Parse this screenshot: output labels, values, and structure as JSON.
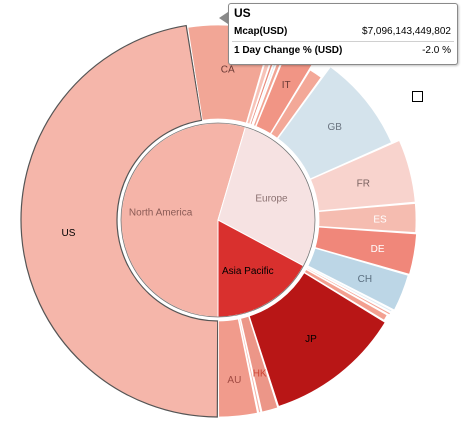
{
  "chart_data": {
    "type": "sunburst",
    "title": "",
    "inner_ring": [
      {
        "name": "North America",
        "value": 10000,
        "color": "#f5b4a8",
        "text_color": "#8a5a55"
      },
      {
        "name": "Europe",
        "value": 5178,
        "color": "#f6e2e2",
        "text_color": "#8a7070"
      },
      {
        "name": "Asia Pacific",
        "value": 3148,
        "color": "#d9302e",
        "text_color": "#000000"
      }
    ],
    "outer_ring": [
      {
        "name": "US",
        "parent": "North America",
        "value": 8700,
        "color": "#f5b6aa",
        "label": "US",
        "label_color": "#000000"
      },
      {
        "name": "CA",
        "parent": "North America",
        "value": 1300,
        "color": "#f2a696",
        "label": "CA",
        "label_color": "#6a3a36"
      },
      {
        "name": "eu-a",
        "parent": "Europe",
        "value": 100,
        "color": "#f7c3b8",
        "label": ""
      },
      {
        "name": "eu-b",
        "parent": "Europe",
        "value": 60,
        "color": "#e98a7a",
        "label": ""
      },
      {
        "name": "eu-c",
        "parent": "Europe",
        "value": 40,
        "color": "#a8c6dc",
        "label": ""
      },
      {
        "name": "eu-d",
        "parent": "Europe",
        "value": 80,
        "color": "#f2a494",
        "label": ""
      },
      {
        "name": "IT",
        "parent": "Europe",
        "value": 480,
        "color": "#f19585",
        "label": "IT",
        "label_color": "#6a3a36"
      },
      {
        "name": "eu-e",
        "parent": "Europe",
        "value": 240,
        "color": "#f3a898",
        "label": ""
      },
      {
        "name": "GB",
        "parent": "Europe",
        "value": 1530,
        "color": "#d4e3ec",
        "label": "GB",
        "label_color": "#6a7480"
      },
      {
        "name": "FR",
        "parent": "Europe",
        "value": 960,
        "color": "#f8d3cd",
        "label": "FR",
        "label_color": "#7a6260"
      },
      {
        "name": "ES",
        "parent": "Europe",
        "value": 450,
        "color": "#f5bcb0",
        "label": "ES",
        "label_color": "#ffffff"
      },
      {
        "name": "DE",
        "parent": "Europe",
        "value": 620,
        "color": "#f0877a",
        "label": "DE",
        "label_color": "#ffffff"
      },
      {
        "name": "CH",
        "parent": "Europe",
        "value": 570,
        "color": "#bcd6e6",
        "label": "CH",
        "label_color": "#5a6f80"
      },
      {
        "name": "eu-f",
        "parent": "Europe",
        "value": 48,
        "color": "#e0ecf4",
        "label": ""
      },
      {
        "name": "ap-a",
        "parent": "Asia Pacific",
        "value": 50,
        "color": "#f4a596",
        "label": ""
      },
      {
        "name": "ap-b",
        "parent": "Asia Pacific",
        "value": 110,
        "color": "#f3a090",
        "label": ""
      },
      {
        "name": "JP",
        "parent": "Asia Pacific",
        "value": 2080,
        "color": "#b81616",
        "label": "JP",
        "label_color": "#000000"
      },
      {
        "name": "HK",
        "parent": "Asia Pacific",
        "value": 260,
        "color": "#ec9688",
        "label": "HK",
        "label_color": "#cc4433"
      },
      {
        "name": "ap-c",
        "parent": "Asia Pacific",
        "value": 50,
        "color": "#f5b1a5",
        "label": ""
      },
      {
        "name": "AU",
        "parent": "Asia Pacific",
        "value": 598,
        "color": "#f19b8c",
        "label": "AU",
        "label_color": "#a04a42"
      }
    ],
    "highlighted": "US",
    "tooltip": {
      "title": "US",
      "rows": [
        {
          "label": "Mcap(USD)",
          "value": "$7,096,143,449,802"
        },
        {
          "label": "1 Day Change % (USD)",
          "value": "-2.0 %"
        }
      ]
    }
  }
}
